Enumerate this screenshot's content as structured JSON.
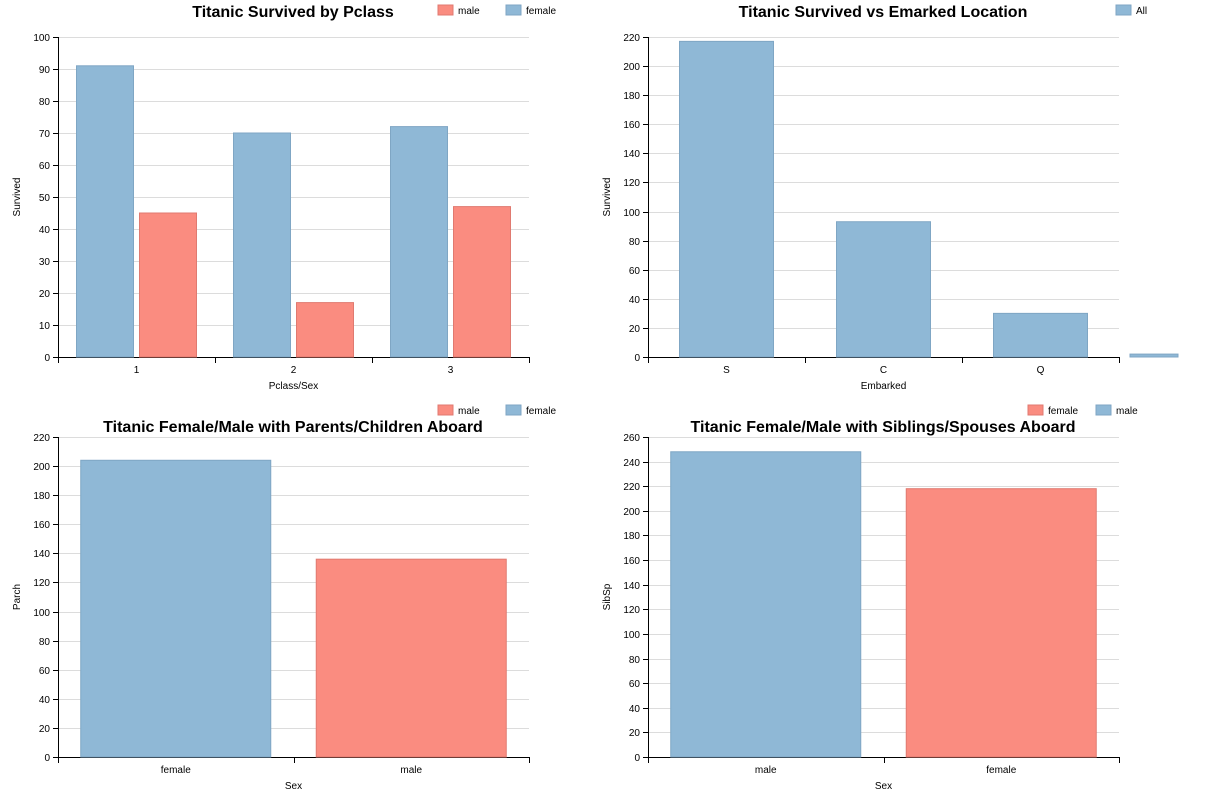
{
  "colors": {
    "blue": "#8fb8d6",
    "blue_stroke": "#7fa6c4",
    "red": "#fa8c80",
    "red_stroke": "#e07a70"
  },
  "chart_data": [
    {
      "type": "bar",
      "title": "Titanic Survived by Pclass",
      "xlabel": "Pclass/Sex",
      "ylabel": "Survived",
      "categories": [
        "1",
        "2",
        "3"
      ],
      "series": [
        {
          "name": "female",
          "color": "blue",
          "values": [
            91,
            70,
            72
          ]
        },
        {
          "name": "male",
          "color": "red",
          "values": [
            45,
            17,
            47
          ]
        }
      ],
      "legend": [
        {
          "name": "male",
          "color": "red"
        },
        {
          "name": "female",
          "color": "blue"
        }
      ],
      "legend_position": "top-right",
      "yticks": [
        0,
        10,
        20,
        30,
        40,
        50,
        60,
        70,
        80,
        90,
        100
      ],
      "ylim": [
        0,
        100
      ],
      "grid": true
    },
    {
      "type": "bar",
      "title": "Titanic Survived vs Emarked Location",
      "xlabel": "Embarked",
      "ylabel": "Survived",
      "categories": [
        "S",
        "C",
        "Q",
        ""
      ],
      "series": [
        {
          "name": "All",
          "color": "blue",
          "values": [
            217,
            93,
            30,
            2
          ]
        }
      ],
      "legend": [
        {
          "name": "All",
          "color": "blue"
        }
      ],
      "legend_position": "top-right",
      "yticks": [
        0,
        20,
        40,
        60,
        80,
        100,
        120,
        140,
        160,
        180,
        200,
        220
      ],
      "ylim": [
        0,
        220
      ],
      "grid": true
    },
    {
      "type": "bar",
      "title": "Titanic Female/Male with Parents/Children Aboard",
      "xlabel": "Sex",
      "ylabel": "Parch",
      "categories": [
        "female",
        "male"
      ],
      "series": [
        {
          "name": "Parch",
          "colors": [
            "blue",
            "red"
          ],
          "values": [
            204,
            136
          ]
        }
      ],
      "legend": [
        {
          "name": "male",
          "color": "red"
        },
        {
          "name": "female",
          "color": "blue"
        }
      ],
      "legend_position": "top-right",
      "yticks": [
        0,
        20,
        40,
        60,
        80,
        100,
        120,
        140,
        160,
        180,
        200,
        220
      ],
      "ylim": [
        0,
        220
      ],
      "grid": true
    },
    {
      "type": "bar",
      "title": "Titanic Female/Male with Siblings/Spouses Aboard",
      "xlabel": "Sex",
      "ylabel": "SibSp",
      "categories": [
        "male",
        "female"
      ],
      "series": [
        {
          "name": "SibSp",
          "colors": [
            "blue",
            "red"
          ],
          "values": [
            248,
            218
          ]
        }
      ],
      "legend": [
        {
          "name": "female",
          "color": "red"
        },
        {
          "name": "male",
          "color": "blue"
        }
      ],
      "legend_position": "top-right",
      "yticks": [
        0,
        20,
        40,
        60,
        80,
        100,
        120,
        140,
        160,
        180,
        200,
        220,
        240,
        260
      ],
      "ylim": [
        0,
        260
      ],
      "grid": true
    }
  ]
}
